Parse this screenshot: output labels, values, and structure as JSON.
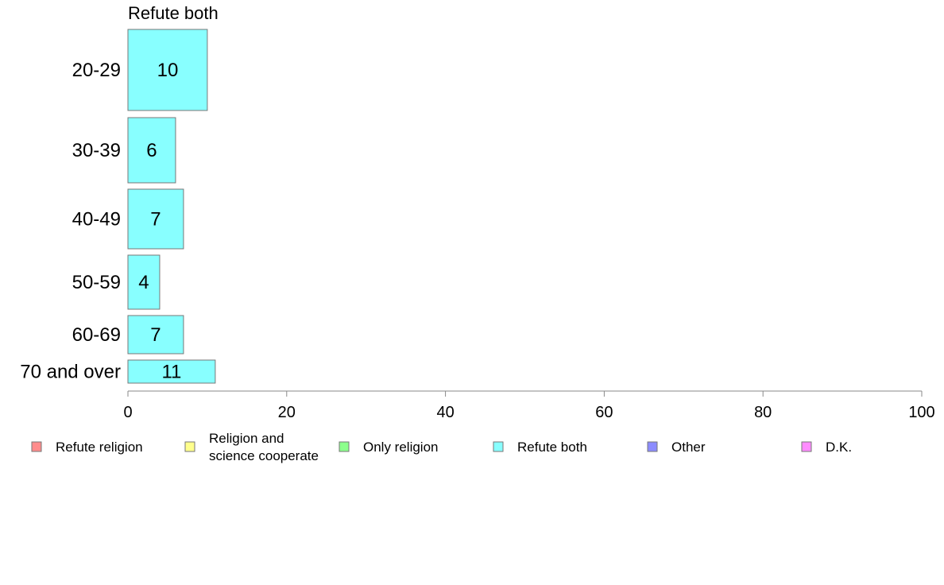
{
  "chart_data": {
    "type": "bar",
    "orientation": "horizontal",
    "title": "Refute both",
    "categories": [
      "20-29",
      "30-39",
      "40-49",
      "50-59",
      "60-69",
      "70 and over"
    ],
    "values": [
      10,
      6,
      7,
      4,
      7,
      11
    ],
    "data_labels": [
      "10",
      "6",
      "7",
      "4",
      "7",
      "11"
    ],
    "xlim": [
      0,
      100
    ],
    "xticks": [
      0,
      20,
      40,
      60,
      80,
      100
    ],
    "grid": false,
    "bar_color": "#88ffff",
    "bar_border": "#777777",
    "legend_position": "bottom",
    "legend": [
      {
        "label": "Refute religion",
        "color": "#ff8c8c"
      },
      {
        "label": "Religion and science cooperate",
        "lines": [
          "Religion and",
          "science cooperate"
        ],
        "color": "#ffff8c"
      },
      {
        "label": "Only religion",
        "color": "#8cff8c"
      },
      {
        "label": "Refute both",
        "color": "#88ffff"
      },
      {
        "label": "Other",
        "color": "#8c8cff"
      },
      {
        "label": "D.K.",
        "color": "#ff8cff"
      }
    ]
  }
}
